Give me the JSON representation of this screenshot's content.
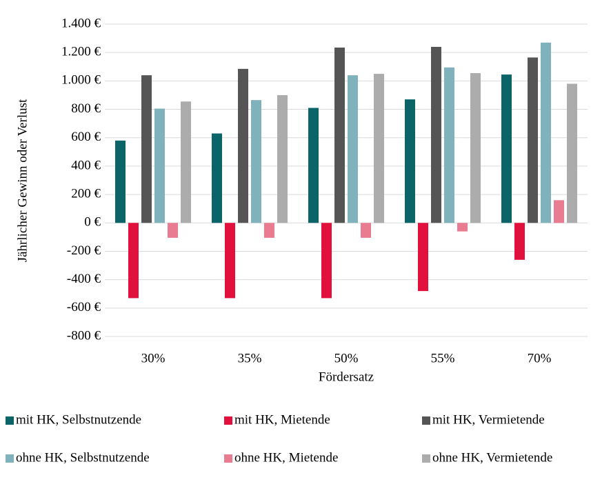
{
  "chart_data": {
    "type": "bar",
    "x_label": "Fördersatz",
    "y_label": "Jährlicher Gewinn oder Verlust",
    "categories": [
      "30%",
      "35%",
      "50%",
      "55%",
      "70%"
    ],
    "series": [
      {
        "name": "mit HK, Selbstnutzende",
        "color": "#0b6468",
        "values": [
          580,
          630,
          810,
          870,
          1045
        ]
      },
      {
        "name": "mit HK, Mietende",
        "color": "#e2103c",
        "values": [
          -530,
          -530,
          -530,
          -480,
          -260
        ]
      },
      {
        "name": "mit HK, Vermietende",
        "color": "#555555",
        "values": [
          1040,
          1085,
          1235,
          1240,
          1165
        ]
      },
      {
        "name": "ohne HK, Selbstnutzende",
        "color": "#80b2bc",
        "values": [
          805,
          865,
          1040,
          1095,
          1270
        ]
      },
      {
        "name": "ohne HK, Mietende",
        "color": "#ea7c92",
        "values": [
          -105,
          -105,
          -105,
          -60,
          160
        ]
      },
      {
        "name": "ohne HK, Vermietende",
        "color": "#acacac",
        "values": [
          855,
          900,
          1050,
          1055,
          980
        ]
      }
    ],
    "ylim": [
      -800,
      1400
    ],
    "yticks": [
      {
        "value": -800,
        "label": "-800 €"
      },
      {
        "value": -600,
        "label": "-600 €"
      },
      {
        "value": -400,
        "label": "-400 €"
      },
      {
        "value": -200,
        "label": "-200 €"
      },
      {
        "value": 0,
        "label": "0 €"
      },
      {
        "value": 200,
        "label": "200 €"
      },
      {
        "value": 400,
        "label": "400 €"
      },
      {
        "value": 600,
        "label": "600 €"
      },
      {
        "value": 800,
        "label": "800 €"
      },
      {
        "value": 1000,
        "label": "1.000 €"
      },
      {
        "value": 1200,
        "label": "1.200 €"
      },
      {
        "value": 1400,
        "label": "1.400 €"
      }
    ],
    "grid": true,
    "legend": "bottom"
  }
}
